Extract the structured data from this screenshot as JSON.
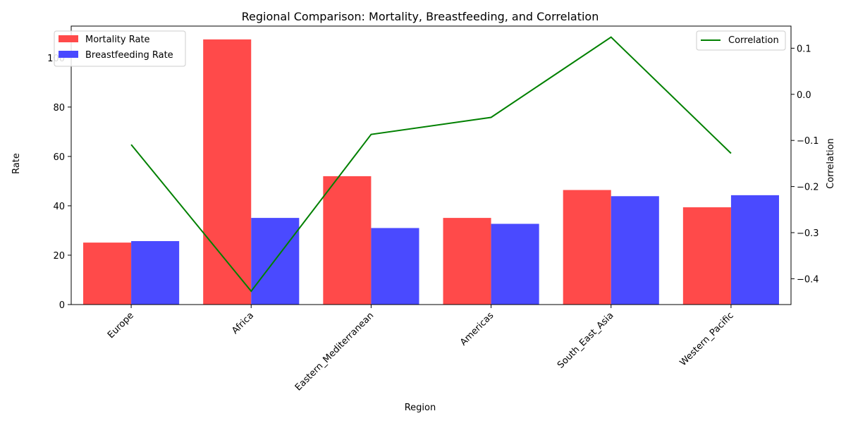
{
  "chart_data": {
    "type": "bar",
    "title": "Regional Comparison: Mortality, Breastfeeding, and Correlation",
    "xlabel": "Region",
    "ylabel": "Rate",
    "y2label": "Correlation",
    "categories": [
      "Europe",
      "Africa",
      "Eastern_Mediterranean",
      "Americas",
      "South_East_Asia",
      "Western_Pacific"
    ],
    "ylim": [
      0,
      112.8
    ],
    "yticks": [
      0,
      20,
      40,
      60,
      80,
      100
    ],
    "y2lim": [
      -0.456,
      0.148
    ],
    "y2ticks": [
      -0.4,
      -0.3,
      -0.2,
      -0.1,
      0.0,
      0.1
    ],
    "y2ticklabels": [
      "−0.4",
      "−0.3",
      "−0.2",
      "−0.1",
      "0.0",
      "0.1"
    ],
    "grid": false,
    "series": [
      {
        "name": "Mortality Rate",
        "type": "bar",
        "axis": "left",
        "color": "#ff4a4a",
        "values": [
          25.1,
          107.4,
          52.0,
          35.1,
          46.4,
          39.4
        ]
      },
      {
        "name": "Breastfeeding Rate",
        "type": "bar",
        "axis": "left",
        "color": "#4a4aff",
        "values": [
          25.7,
          35.1,
          31.0,
          32.7,
          43.9,
          44.3
        ]
      },
      {
        "name": "Correlation",
        "type": "line",
        "axis": "right",
        "color": "#008000",
        "values": [
          -0.109,
          -0.427,
          -0.087,
          -0.05,
          0.124,
          -0.128
        ]
      }
    ],
    "legend_left": {
      "placement": "top-left",
      "entries": [
        "Mortality Rate",
        "Breastfeeding Rate"
      ]
    },
    "legend_right": {
      "placement": "top-right",
      "entries": [
        "Correlation"
      ]
    }
  }
}
